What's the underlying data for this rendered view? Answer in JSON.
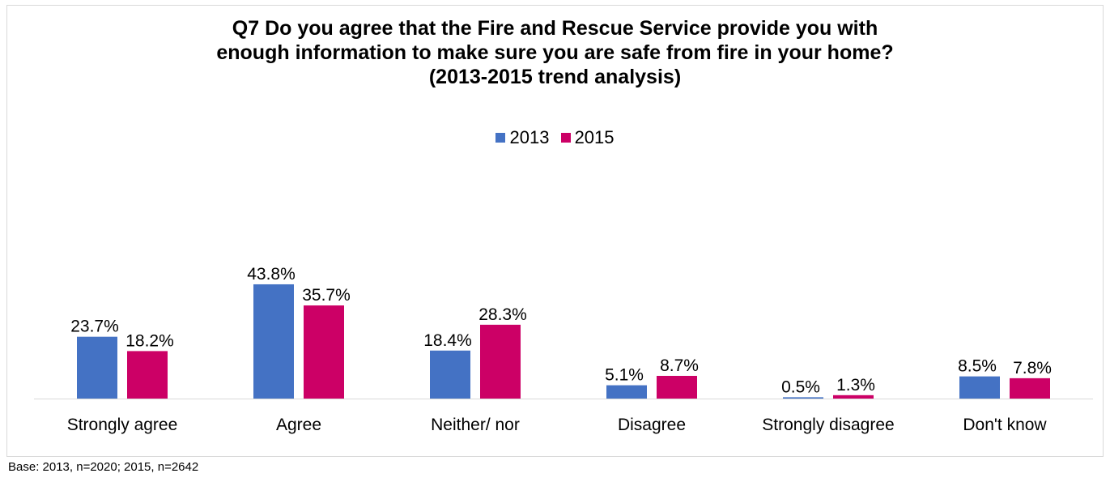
{
  "title": [
    "Q7 Do you agree that the Fire and Rescue Service provide you with",
    "enough information to make sure you are safe from fire in your home?",
    "(2013-2015 trend analysis)"
  ],
  "footnote": "Base: 2013, n=2020; 2015, n=2642",
  "chart_data": {
    "type": "bar",
    "title": "Q7 Do you agree that the Fire and Rescue Service provide you with enough information to make sure you are safe from fire in your home? (2013-2015 trend analysis)",
    "categories": [
      "Strongly agree",
      "Agree",
      "Neither/ nor",
      "Disagree",
      "Strongly disagree",
      "Don't know"
    ],
    "series": [
      {
        "name": "2013",
        "color": "#4472c4",
        "values": [
          23.7,
          43.8,
          18.4,
          5.1,
          0.5,
          8.5
        ],
        "labels": [
          "23.7%",
          "43.8%",
          "18.4%",
          "5.1%",
          "0.5%",
          "8.5%"
        ]
      },
      {
        "name": "2015",
        "color": "#cc0066",
        "values": [
          18.2,
          35.7,
          28.3,
          8.7,
          1.3,
          7.8
        ],
        "labels": [
          "18.2%",
          "35.7%",
          "28.3%",
          "8.7%",
          "1.3%",
          "7.8%"
        ]
      }
    ],
    "legend_position": "top",
    "grid": false
  }
}
